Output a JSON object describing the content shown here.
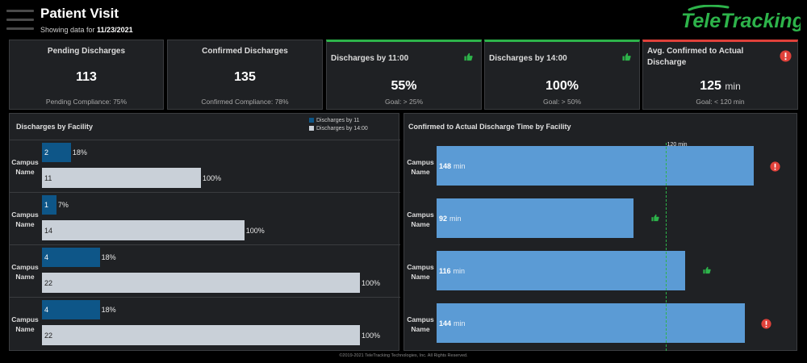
{
  "header": {
    "title": "Patient Visit",
    "subtitle_prefix": "Showing data for ",
    "date": "11/23/2021",
    "logo_text": "TeleTracking"
  },
  "kpis": {
    "pending": {
      "label": "Pending Discharges",
      "value": "113",
      "footer": "Pending Compliance: 75%"
    },
    "confirmed": {
      "label": "Confirmed Discharges",
      "value": "135",
      "footer": "Confirmed Compliance: 78%"
    },
    "by11": {
      "label": "Discharges by 11:00",
      "value": "55%",
      "footer": "Goal: > 25%",
      "status": "good"
    },
    "by14": {
      "label": "Discharges by 14:00",
      "value": "100%",
      "footer": "Goal: > 50%",
      "status": "good"
    },
    "avg": {
      "label": "Avg. Confirmed to Actual Discharge",
      "value": "125",
      "unit": "min",
      "footer": "Goal: < 120 min",
      "status": "bad"
    }
  },
  "facility_panel": {
    "title": "Discharges by Facility",
    "legend": [
      "Discharges by 11",
      "Discharges by 14:00"
    ]
  },
  "time_panel": {
    "title": "Confirmed to Actual Discharge Time by Facility",
    "ref_label": "120 min"
  },
  "colors": {
    "good": "#2db34a",
    "bad": "#e0413a",
    "bar_11": "#0e5688",
    "bar_14": "#c9d0d8",
    "time_bar": "#5b9bd5"
  },
  "chart_data": [
    {
      "type": "bar",
      "title": "Discharges by Facility",
      "categories": [
        "Campus Name",
        "Campus Name",
        "Campus Name",
        "Campus Name"
      ],
      "series": [
        {
          "name": "Discharges by 11",
          "values": [
            2,
            1,
            4,
            4
          ],
          "labels": [
            "18%",
            "7%",
            "18%",
            "18%"
          ]
        },
        {
          "name": "Discharges by 14:00",
          "values": [
            11,
            14,
            22,
            22
          ],
          "labels": [
            "100%",
            "100%",
            "100%",
            "100%"
          ]
        }
      ]
    },
    {
      "type": "bar",
      "title": "Confirmed to Actual Discharge Time by Facility",
      "categories": [
        "Campus Name",
        "Campus Name",
        "Campus Name",
        "Campus Name"
      ],
      "values": [
        148,
        92,
        116,
        144
      ],
      "unit": "min",
      "reference_line": 120,
      "status": [
        "bad",
        "good",
        "good",
        "bad"
      ]
    }
  ],
  "footer": "©2019-2021 TeleTracking Technologies, Inc. All Rights Reserved."
}
